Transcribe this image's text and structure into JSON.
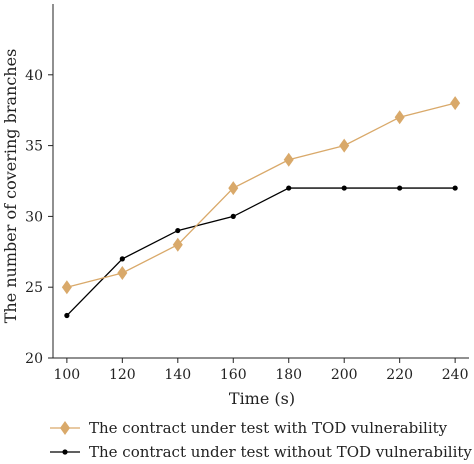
{
  "chart_data": {
    "type": "line",
    "title": "",
    "xlabel": "Time (s)",
    "ylabel": "The number of covering branches",
    "x": [
      100,
      120,
      140,
      160,
      180,
      200,
      220,
      240
    ],
    "xlim": [
      95,
      245
    ],
    "ylim": [
      20,
      45
    ],
    "xticks": [
      100,
      120,
      140,
      160,
      180,
      200,
      220,
      240
    ],
    "yticks": [
      20,
      25,
      30,
      35,
      40
    ],
    "grid": false,
    "legend_position": "bottom",
    "series": [
      {
        "name": "The contract under test with TOD vulnerability",
        "values": [
          25,
          26,
          28,
          32,
          34,
          35,
          37,
          38
        ],
        "color": "#d9a96a",
        "marker": "diamond"
      },
      {
        "name": "The contract under test without TOD vulnerability",
        "values": [
          23,
          27,
          29,
          30,
          32,
          32,
          32,
          32
        ],
        "color": "#000000",
        "marker": "circle"
      }
    ]
  }
}
